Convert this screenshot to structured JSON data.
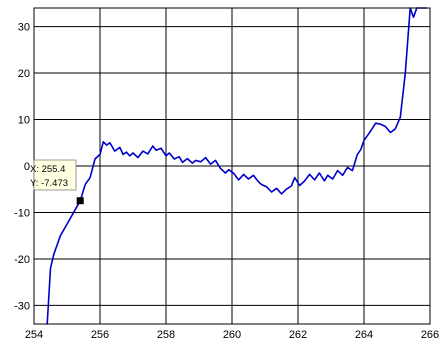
{
  "chart_data": {
    "type": "line",
    "title": "",
    "xlabel": "",
    "ylabel": "",
    "xlim": [
      254,
      266
    ],
    "ylim": [
      -34,
      34
    ],
    "x_ticks": [
      254,
      256,
      258,
      260,
      262,
      264,
      266
    ],
    "y_ticks": [
      -30,
      -20,
      -10,
      0,
      10,
      20,
      30
    ],
    "x_tick_labels": [
      "254",
      "256",
      "258",
      "260",
      "262",
      "264",
      "266"
    ],
    "y_tick_labels": [
      "-30",
      "-20",
      "-10",
      "0",
      "10",
      "20",
      "30"
    ],
    "grid": true,
    "series": [
      {
        "color": "#0000cc",
        "x": [
          254.4,
          254.5,
          254.6,
          254.8,
          255.0,
          255.2,
          255.4,
          255.55,
          255.7,
          255.85,
          256.0,
          256.1,
          256.2,
          256.3,
          256.45,
          256.6,
          256.7,
          256.8,
          256.9,
          257.0,
          257.15,
          257.3,
          257.45,
          257.6,
          257.7,
          257.85,
          258.0,
          258.1,
          258.25,
          258.4,
          258.5,
          258.65,
          258.8,
          258.9,
          259.05,
          259.2,
          259.35,
          259.5,
          259.65,
          259.8,
          259.9,
          260.05,
          260.2,
          260.35,
          260.5,
          260.65,
          260.8,
          260.9,
          261.05,
          261.2,
          261.35,
          261.5,
          261.65,
          261.8,
          261.9,
          262.05,
          262.2,
          262.35,
          262.5,
          262.65,
          262.8,
          262.9,
          263.05,
          263.2,
          263.35,
          263.5,
          263.65,
          263.8,
          263.9,
          264.0,
          264.1,
          264.2,
          264.35,
          264.5,
          264.65,
          264.8,
          264.95,
          265.1,
          265.25,
          265.4,
          265.5,
          265.6,
          265.65,
          265.7,
          265.75,
          265.85,
          265.9
        ],
        "y": [
          -34,
          -22,
          -19,
          -15,
          -12.5,
          -10,
          -7.473,
          -4,
          -2.5,
          1.5,
          2.5,
          5.2,
          4.5,
          5.0,
          3.2,
          4.0,
          2.5,
          3.0,
          2.2,
          2.8,
          1.8,
          3.2,
          2.6,
          4.3,
          3.4,
          3.8,
          2.2,
          2.8,
          1.5,
          2.0,
          0.8,
          1.6,
          0.6,
          1.2,
          0.9,
          1.8,
          0.4,
          1.2,
          -0.5,
          -1.5,
          -0.8,
          -1.6,
          -3.0,
          -1.8,
          -2.8,
          -2.0,
          -3.4,
          -4.0,
          -4.5,
          -5.6,
          -4.8,
          -6.0,
          -5.0,
          -4.3,
          -2.5,
          -4.2,
          -3.2,
          -1.8,
          -3.0,
          -1.5,
          -3.2,
          -2.0,
          -2.8,
          -1.0,
          -2.0,
          -0.3,
          -1.0,
          2.5,
          3.5,
          5.5,
          6.5,
          7.5,
          9.2,
          9.0,
          8.5,
          7.2,
          8.0,
          10.5,
          20,
          34,
          32,
          34,
          34,
          34,
          34,
          34,
          34
        ]
      }
    ],
    "marker": {
      "x": 255.4,
      "y": -7.473,
      "color": "#000000"
    },
    "datatip": {
      "x_text": "X: 255.4",
      "y_text": "Y: -7.473"
    },
    "frame_color": "#000000",
    "grid_color": "#000000",
    "background": "#ffffff"
  }
}
